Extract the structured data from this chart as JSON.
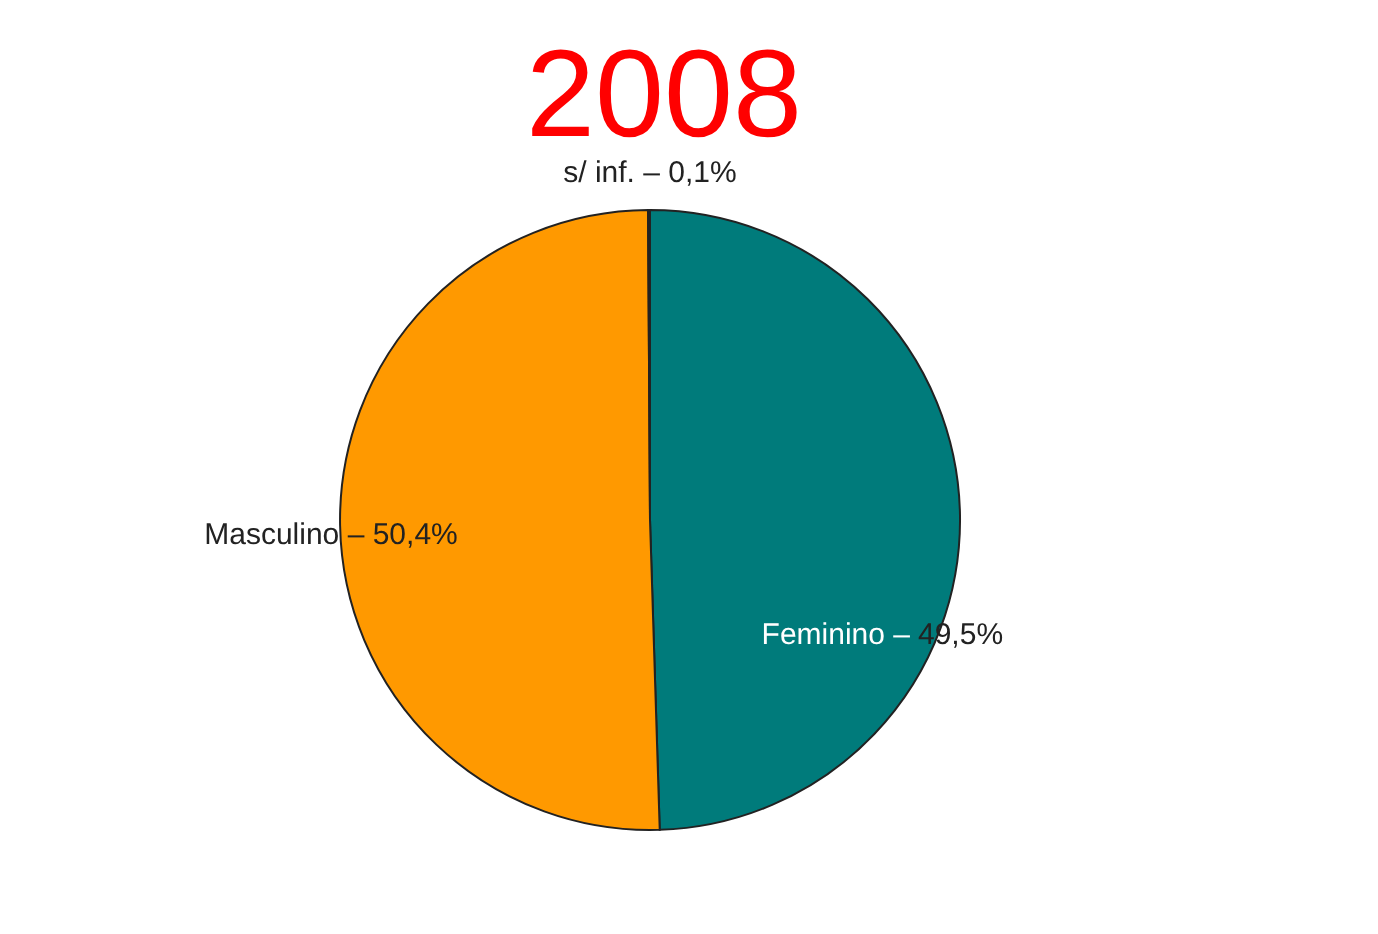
{
  "chart_data": {
    "type": "pie",
    "title": "2008",
    "categories": [
      "Feminino –",
      "Masculino –",
      "s/ inf. –"
    ],
    "values": [
      49.5,
      50.4,
      0.1
    ],
    "value_labels": [
      "49,5%",
      "50,4%",
      "0,1%"
    ],
    "colors": [
      "#007b7b",
      "#ff9900",
      "#e0e0e0"
    ]
  }
}
